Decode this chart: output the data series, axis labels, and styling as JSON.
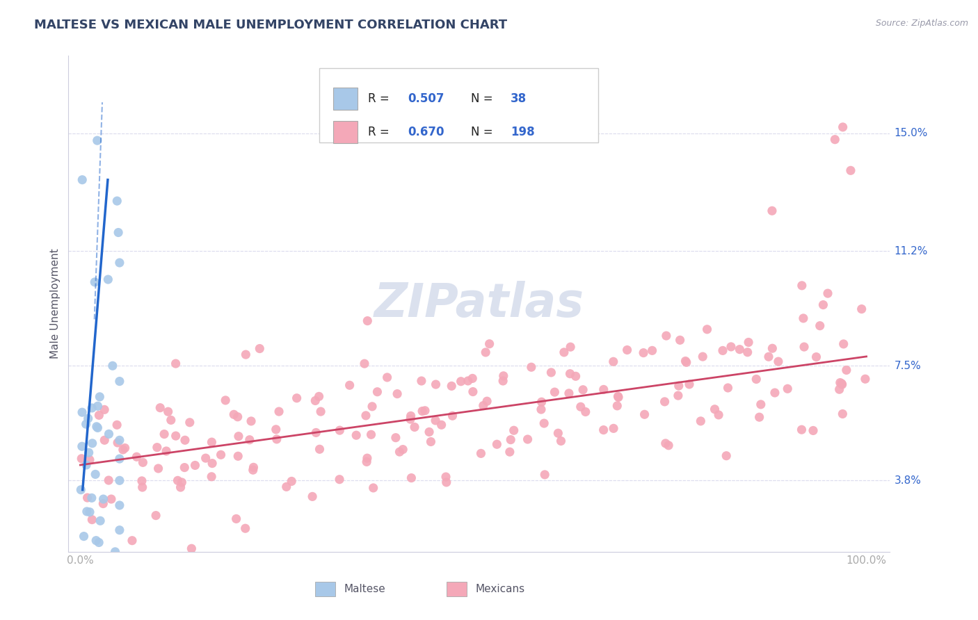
{
  "title": "MALTESE VS MEXICAN MALE UNEMPLOYMENT CORRELATION CHART",
  "source": "Source: ZipAtlas.com",
  "ylabel": "Male Unemployment",
  "yticks": [
    3.8,
    7.5,
    11.2,
    15.0
  ],
  "xtick_labels": [
    "0.0%",
    "100.0%"
  ],
  "ytick_labels": [
    "3.8%",
    "7.5%",
    "11.2%",
    "15.0%"
  ],
  "maltese_color": "#a8c8e8",
  "mexican_color": "#f4a8b8",
  "maltese_line_color": "#2266cc",
  "mexican_line_color": "#cc4466",
  "title_color": "#334466",
  "axis_color": "#aaaacc",
  "tick_color": "#aaaaaa",
  "rn_color": "#3366cc",
  "grid_color": "#ddddee",
  "watermark_color": "#ccd5e8",
  "source_color": "#999aaa"
}
